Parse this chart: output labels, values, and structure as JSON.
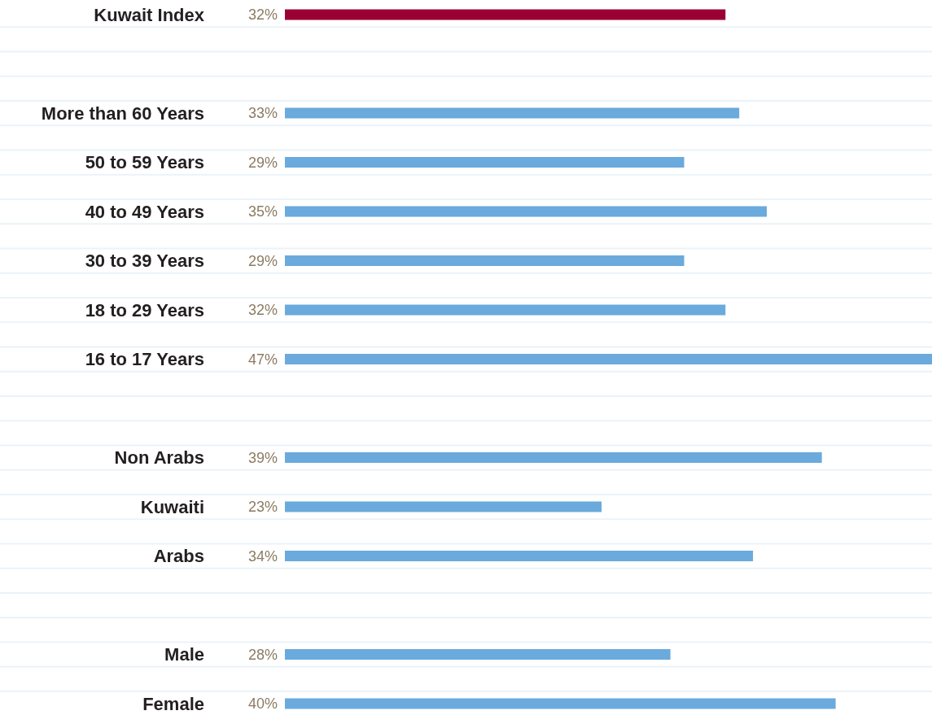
{
  "chart_data": {
    "type": "bar",
    "orientation": "horizontal",
    "categories": [
      "Kuwait Index",
      null,
      "More than 60 Years",
      "50 to 59 Years",
      "40 to 49 Years",
      "30 to 39 Years",
      "18 to 29 Years",
      "16 to 17 Years",
      null,
      "Non Arabs",
      "Kuwaiti",
      "Arabs",
      null,
      "Male",
      "Female"
    ],
    "values": [
      32,
      null,
      33,
      29,
      35,
      29,
      32,
      47,
      null,
      39,
      23,
      34,
      null,
      28,
      40
    ],
    "value_labels": [
      "32%",
      null,
      "33%",
      "29%",
      "35%",
      "29%",
      "32%",
      "47%",
      null,
      "39%",
      "23%",
      "34%",
      null,
      "28%",
      "40%"
    ],
    "colors": [
      "#9b0034",
      null,
      "#6aaadc",
      "#6aaadc",
      "#6aaadc",
      "#6aaadc",
      "#6aaadc",
      "#6aaadc",
      null,
      "#6aaadc",
      "#6aaadc",
      "#6aaadc",
      null,
      "#6aaadc",
      "#6aaadc"
    ],
    "xlim": [
      0,
      47
    ],
    "grid": true
  }
}
